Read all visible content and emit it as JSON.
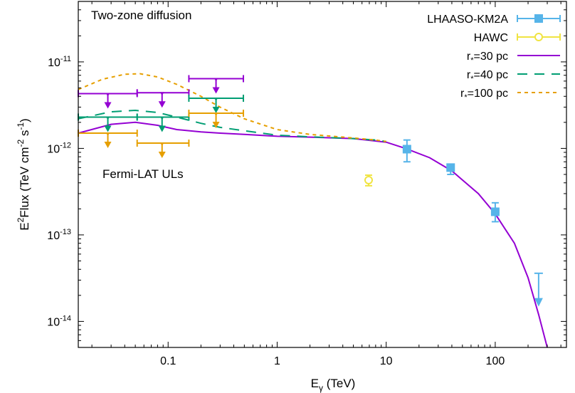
{
  "chart_data": {
    "type": "line",
    "title": "",
    "xlabel": "E",
    "xlabel_sub": "γ",
    "xlabel_unit": " (TeV)",
    "ylabel": "E2Flux (TeV cm-2 s-1)",
    "ylabel_parts": {
      "a": "E",
      "b": "2",
      "c": "Flux (TeV cm",
      "d": "-2",
      "e": " s",
      "f": "-1",
      "g": ")"
    },
    "xscale": "log",
    "yscale": "log",
    "xlim": [
      0.015,
      450
    ],
    "ylim": [
      5e-15,
      5e-11
    ],
    "x_ticks": [
      {
        "value": 0.1,
        "label": "0.1"
      },
      {
        "value": 1,
        "label": "1"
      },
      {
        "value": 10,
        "label": "10"
      },
      {
        "value": 100,
        "label": "100"
      }
    ],
    "y_ticks": [
      {
        "value": 1e-14,
        "base": "10",
        "exp": "-14"
      },
      {
        "value": 1e-13,
        "base": "10",
        "exp": "-13"
      },
      {
        "value": 1e-12,
        "base": "10",
        "exp": "-12"
      },
      {
        "value": 1e-11,
        "base": "10",
        "exp": "-11"
      }
    ],
    "annotations": {
      "top_left": "Two-zone diffusion",
      "fermi": "Fermi-LAT ULs"
    },
    "legend_position": "top-right",
    "colors": {
      "r30": "#9400d3",
      "r40": "#009e73",
      "r100": "#e69f00",
      "lhaaso": "#56b4e9",
      "hawc": "#f0e442"
    },
    "legend": [
      {
        "key": "lhaaso",
        "label": "LHAASO-KM2A",
        "style": "errorbar-square"
      },
      {
        "key": "hawc",
        "label": "HAWC",
        "style": "errorbar-circle"
      },
      {
        "key": "r30",
        "pre": "r",
        "sub": "*",
        "post": "=30 pc",
        "style": "solid"
      },
      {
        "key": "r40",
        "pre": "r",
        "sub": "*",
        "post": "=40 pc",
        "style": "dashed"
      },
      {
        "key": "r100",
        "pre": "r",
        "sub": "*",
        "post": "=100 pc",
        "style": "dotted"
      }
    ],
    "series": [
      {
        "key": "r30",
        "name": "r*=30 pc",
        "x": [
          0.015,
          0.03,
          0.05,
          0.08,
          0.12,
          0.2,
          0.3,
          0.5,
          1,
          2,
          5,
          10,
          15,
          25,
          40,
          70,
          100,
          150,
          200,
          250,
          300
        ],
        "y": [
          1.5e-12,
          1.9e-12,
          2e-12,
          1.85e-12,
          1.65e-12,
          1.55e-12,
          1.5e-12,
          1.45e-12,
          1.38e-12,
          1.35e-12,
          1.3e-12,
          1.18e-12,
          1e-12,
          7.8e-13,
          5.5e-13,
          3e-13,
          1.75e-13,
          8e-14,
          3.2e-14,
          1.2e-14,
          5e-15
        ]
      },
      {
        "key": "r40",
        "name": "r*=40 pc",
        "x": [
          0.015,
          0.03,
          0.05,
          0.08,
          0.12,
          0.2,
          0.3,
          0.5,
          1,
          2,
          5,
          8,
          10
        ],
        "y": [
          2.2e-12,
          2.65e-12,
          2.75e-12,
          2.6e-12,
          2.3e-12,
          1.95e-12,
          1.75e-12,
          1.6e-12,
          1.42e-12,
          1.36e-12,
          1.3e-12,
          1.25e-12,
          1.2e-12
        ]
      },
      {
        "key": "r100",
        "name": "r*=100 pc",
        "x": [
          0.015,
          0.025,
          0.04,
          0.055,
          0.08,
          0.12,
          0.2,
          0.3,
          0.5,
          1,
          2,
          5,
          8,
          10
        ],
        "y": [
          4.8e-12,
          6.3e-12,
          7.2e-12,
          7.3e-12,
          6.7e-12,
          5.5e-12,
          4e-12,
          3e-12,
          2.2e-12,
          1.65e-12,
          1.45e-12,
          1.32e-12,
          1.25e-12,
          1.2e-12
        ]
      }
    ],
    "upper_limits": [
      {
        "key": "r30",
        "xlo": 0.015,
        "xhi": 0.052,
        "x": 0.028,
        "y": 4.3e-12
      },
      {
        "key": "r30",
        "xlo": 0.052,
        "xhi": 0.155,
        "x": 0.088,
        "y": 4.4e-12
      },
      {
        "key": "r30",
        "xlo": 0.155,
        "xhi": 0.49,
        "x": 0.275,
        "y": 6.4e-12
      },
      {
        "key": "r40",
        "xlo": 0.015,
        "xhi": 0.052,
        "x": 0.028,
        "y": 2.3e-12
      },
      {
        "key": "r40",
        "xlo": 0.052,
        "xhi": 0.155,
        "x": 0.088,
        "y": 2.3e-12
      },
      {
        "key": "r40",
        "xlo": 0.155,
        "xhi": 0.49,
        "x": 0.275,
        "y": 3.8e-12
      },
      {
        "key": "r100",
        "xlo": 0.015,
        "xhi": 0.052,
        "x": 0.028,
        "y": 1.5e-12
      },
      {
        "key": "r100",
        "xlo": 0.052,
        "xhi": 0.155,
        "x": 0.088,
        "y": 1.15e-12
      },
      {
        "key": "r100",
        "xlo": 0.155,
        "xhi": 0.49,
        "x": 0.275,
        "y": 2.55e-12
      }
    ],
    "lhaaso_points": [
      {
        "x": 15.5,
        "y": 9.8e-13,
        "ylo": 7e-13,
        "yhi": 1.25e-12
      },
      {
        "x": 39,
        "y": 6e-13,
        "ylo": 5e-13,
        "yhi": 6.3e-13
      },
      {
        "x": 100,
        "y": 1.85e-13,
        "ylo": 1.42e-13,
        "yhi": 2.35e-13
      }
    ],
    "lhaaso_upper_limit": {
      "x": 250,
      "y": 3.6e-14,
      "arrow_to": 1.6e-14
    },
    "hawc_points": [
      {
        "x": 6.9,
        "y": 4.3e-13,
        "ylo": 3.7e-13,
        "yhi": 4.9e-13
      }
    ]
  }
}
